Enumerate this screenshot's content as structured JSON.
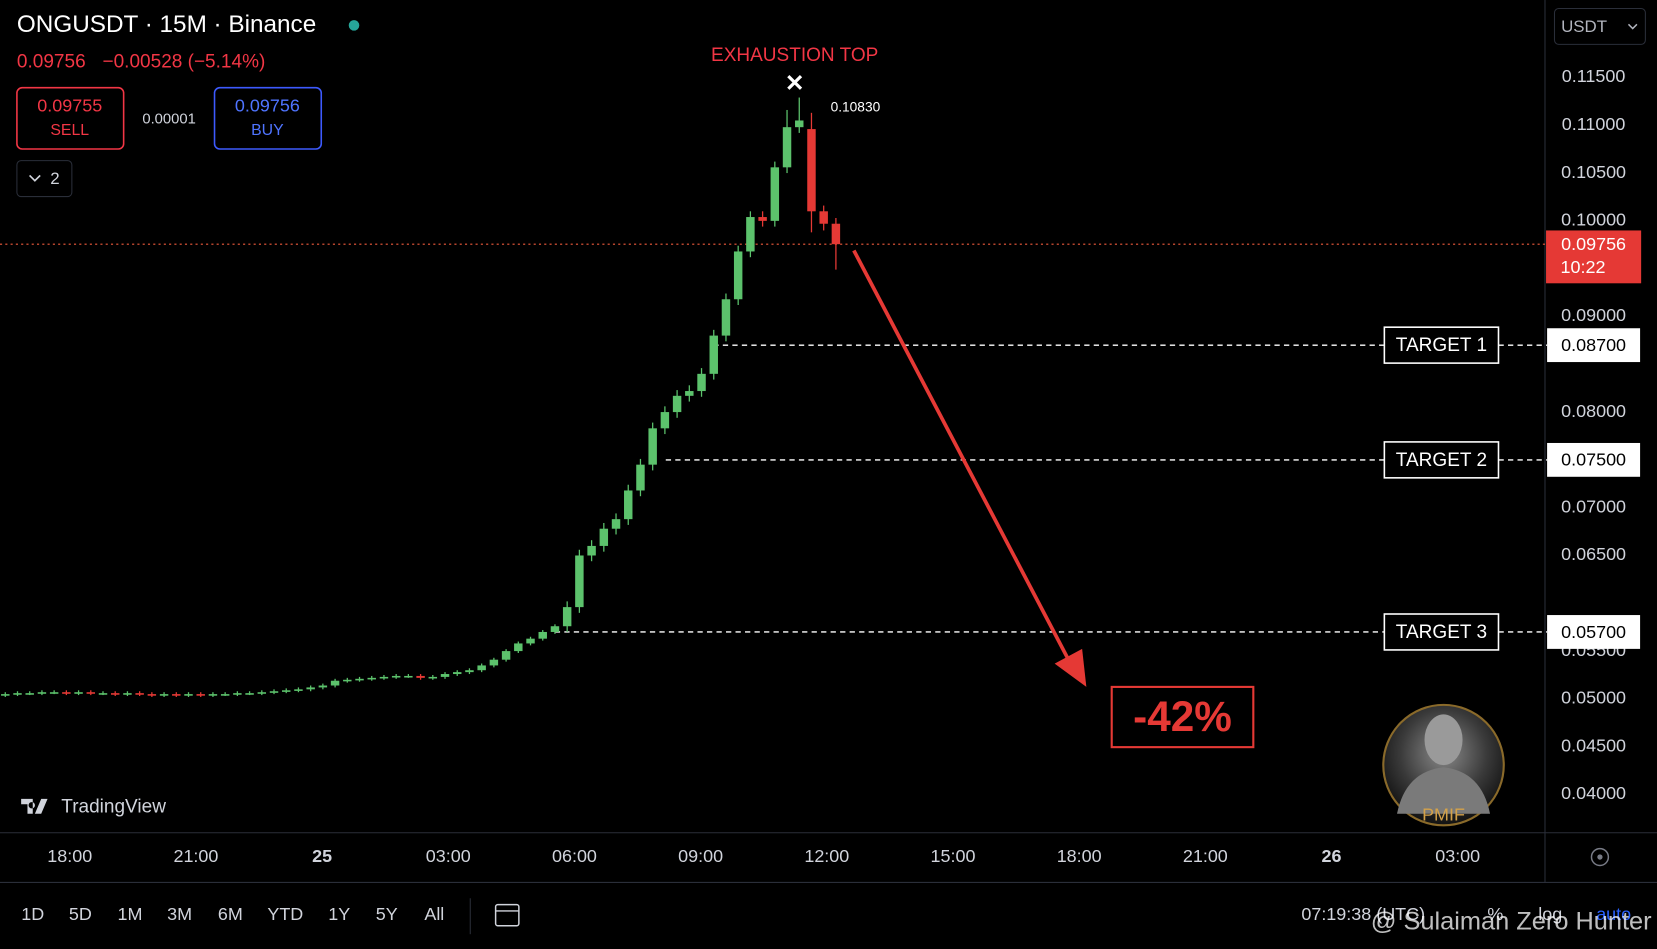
{
  "header": {
    "symbol": "ONGUSDT · 15M · Binance",
    "price": "0.09756",
    "change": "−0.00528 (−5.14%)",
    "sell_price": "0.09755",
    "sell_label": "SELL",
    "spread": "0.00001",
    "buy_price": "0.09756",
    "buy_label": "BUY",
    "indicators_count": "2"
  },
  "currency": "USDT",
  "chart_data": {
    "type": "candlestick",
    "up_color": "#5cc26c",
    "down_color": "#e53935",
    "open": [
      0.0504,
      0.0505,
      0.0506,
      0.0506,
      0.0507,
      0.0507,
      0.0506,
      0.0507,
      0.0506,
      0.0506,
      0.0505,
      0.0506,
      0.0505,
      0.0504,
      0.0505,
      0.0504,
      0.0505,
      0.0504,
      0.0505,
      0.0505,
      0.0506,
      0.0506,
      0.0507,
      0.0508,
      0.0509,
      0.051,
      0.0512,
      0.0514,
      0.0519,
      0.052,
      0.0521,
      0.0522,
      0.0523,
      0.0524,
      0.0524,
      0.0522,
      0.0523,
      0.0526,
      0.0528,
      0.053,
      0.0535,
      0.0541,
      0.055,
      0.0558,
      0.0563,
      0.057,
      0.0576,
      0.0596,
      0.065,
      0.066,
      0.0678,
      0.0688,
      0.0718,
      0.0745,
      0.0783,
      0.08,
      0.0817,
      0.0822,
      0.084,
      0.088,
      0.0918,
      0.0968,
      0.1004,
      0.1,
      0.1056,
      0.1098,
      0.1096,
      0.101,
      0.0997
    ],
    "high": [
      0.0507,
      0.0508,
      0.0508,
      0.0509,
      0.0509,
      0.0509,
      0.0509,
      0.0509,
      0.0508,
      0.0508,
      0.0508,
      0.0508,
      0.0507,
      0.0507,
      0.0507,
      0.0507,
      0.0507,
      0.0507,
      0.0507,
      0.0508,
      0.0508,
      0.0509,
      0.051,
      0.0511,
      0.0512,
      0.0514,
      0.0516,
      0.0521,
      0.0522,
      0.0523,
      0.0524,
      0.0525,
      0.0526,
      0.0526,
      0.0526,
      0.0525,
      0.0528,
      0.053,
      0.0532,
      0.0537,
      0.0543,
      0.0552,
      0.056,
      0.0565,
      0.0572,
      0.0578,
      0.0602,
      0.0656,
      0.0666,
      0.0684,
      0.0694,
      0.0724,
      0.0751,
      0.0789,
      0.0806,
      0.0823,
      0.0828,
      0.0846,
      0.0886,
      0.0924,
      0.0974,
      0.101,
      0.101,
      0.1062,
      0.1116,
      0.1129,
      0.1113,
      0.1016,
      0.1003
    ],
    "low": [
      0.0502,
      0.0503,
      0.0504,
      0.0504,
      0.0505,
      0.0504,
      0.0504,
      0.0504,
      0.0504,
      0.0503,
      0.0503,
      0.0503,
      0.0502,
      0.0502,
      0.0502,
      0.0502,
      0.0502,
      0.0502,
      0.0503,
      0.0503,
      0.0504,
      0.0504,
      0.0505,
      0.0506,
      0.0507,
      0.0508,
      0.051,
      0.0512,
      0.0517,
      0.0518,
      0.0519,
      0.052,
      0.0521,
      0.0522,
      0.052,
      0.052,
      0.0521,
      0.0524,
      0.0526,
      0.0528,
      0.0533,
      0.0539,
      0.0548,
      0.0556,
      0.0561,
      0.0568,
      0.057,
      0.059,
      0.0644,
      0.0654,
      0.0672,
      0.0682,
      0.0712,
      0.0739,
      0.0777,
      0.0794,
      0.0811,
      0.0816,
      0.0834,
      0.0874,
      0.0912,
      0.0962,
      0.0994,
      0.0994,
      0.105,
      0.1092,
      0.0988,
      0.099,
      0.0949
    ],
    "close": [
      0.0505,
      0.0506,
      0.0506,
      0.0507,
      0.0507,
      0.0506,
      0.0507,
      0.0506,
      0.0506,
      0.0505,
      0.0506,
      0.0505,
      0.0504,
      0.0505,
      0.0504,
      0.0505,
      0.0504,
      0.0505,
      0.0505,
      0.0506,
      0.0506,
      0.0507,
      0.0508,
      0.0509,
      0.051,
      0.0512,
      0.0514,
      0.0519,
      0.052,
      0.0521,
      0.0522,
      0.0523,
      0.0524,
      0.0524,
      0.0522,
      0.0523,
      0.0526,
      0.0528,
      0.053,
      0.0535,
      0.0541,
      0.055,
      0.0558,
      0.0563,
      0.057,
      0.0576,
      0.0596,
      0.065,
      0.066,
      0.0678,
      0.0688,
      0.0718,
      0.0745,
      0.0783,
      0.08,
      0.0817,
      0.0822,
      0.084,
      0.088,
      0.0918,
      0.0968,
      0.1004,
      0.1,
      0.1056,
      0.1098,
      0.1105,
      0.101,
      0.0997,
      0.09756
    ],
    "ylim": [
      0.036,
      0.1231
    ],
    "yticks": [
      {
        "value": 0.115,
        "label": "0.11500"
      },
      {
        "value": 0.11,
        "label": "0.11000"
      },
      {
        "value": 0.105,
        "label": "0.10500"
      },
      {
        "value": 0.1,
        "label": "0.10000"
      },
      {
        "value": 0.09,
        "label": "0.09000"
      },
      {
        "value": 0.08,
        "label": "0.08000"
      },
      {
        "value": 0.07,
        "label": "0.07000"
      },
      {
        "value": 0.065,
        "label": "0.06500"
      },
      {
        "value": 0.055,
        "label": "0.05500"
      },
      {
        "value": 0.05,
        "label": "0.05000"
      },
      {
        "value": 0.045,
        "label": "0.04500"
      },
      {
        "value": 0.04,
        "label": "0.04000"
      }
    ],
    "x_labels": [
      "18:00",
      "21:00",
      "25",
      "03:00",
      "06:00",
      "09:00",
      "12:00",
      "15:00",
      "18:00",
      "21:00",
      "26",
      "03:00"
    ],
    "last_price": 0.09756,
    "countdown": "10:22",
    "top_label": "EXHAUSTION TOP",
    "peak_label": "0.10830",
    "move_label": "-42%",
    "targets": [
      {
        "label": "TARGET 1",
        "value": 0.087,
        "value_label": "0.08700"
      },
      {
        "label": "TARGET 2",
        "value": 0.075,
        "value_label": "0.07500"
      },
      {
        "label": "TARGET 3",
        "value": 0.057,
        "value_label": "0.05700"
      }
    ]
  },
  "toolbar": {
    "ranges": [
      "1D",
      "5D",
      "1M",
      "3M",
      "6M",
      "YTD",
      "1Y",
      "5Y",
      "All"
    ],
    "clock": "07:19:38 (UTC)",
    "percent": "%",
    "log": "log",
    "auto": "auto"
  },
  "branding": {
    "logo": "TradingView",
    "badge": "PMIF",
    "watermark": "@ Sulaiman Zero Hunter"
  }
}
